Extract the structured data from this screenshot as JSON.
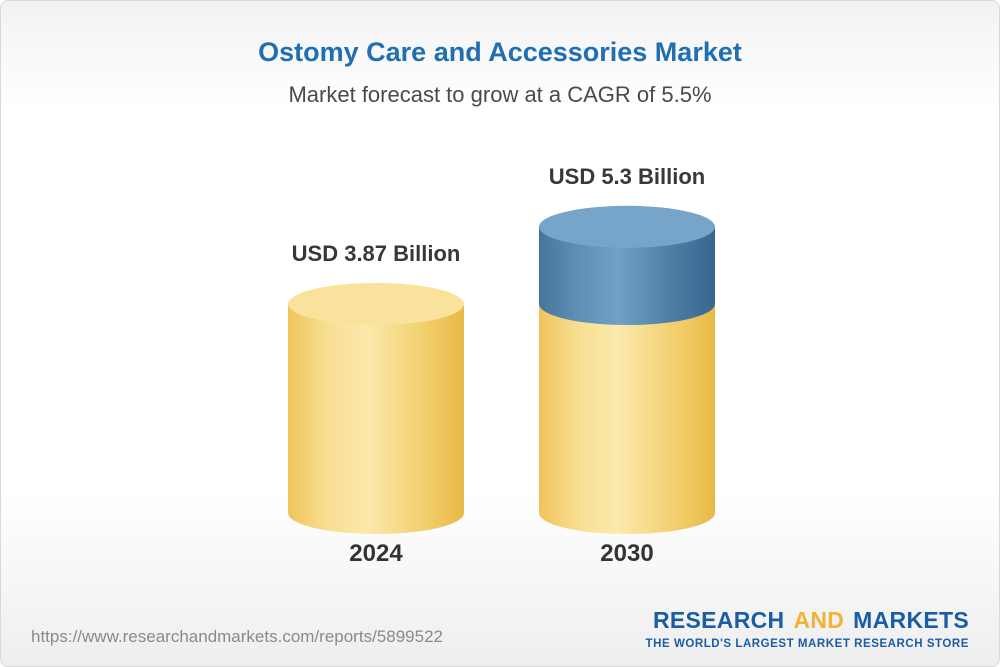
{
  "chart_data": {
    "type": "bar",
    "variant": "3d-cylinder",
    "title": "Ostomy Care and Accessories Market",
    "subtitle": "Market forecast to grow at a CAGR of 5.5%",
    "unit": "USD Billion",
    "categories": [
      "2024",
      "2030"
    ],
    "values": [
      3.87,
      5.3
    ],
    "value_labels": [
      "USD 3.87 Billion",
      "USD 5.3 Billion"
    ],
    "ylim": [
      0,
      5.5
    ],
    "grid": false,
    "legend": "none",
    "series_note": "2030 bar shows yellow base segment equal to 2024 value (3.87) with blue growth segment on top reaching 5.3",
    "colors": {
      "yellow_body": [
        "#EFC45B",
        "#F8DE92",
        "#FBE9AC",
        "#F2CE6C",
        "#E7B946"
      ],
      "yellow_cap": "#F9E29C",
      "blue_body": [
        "#47749B",
        "#5E90B6",
        "#6FA0C5",
        "#4B7BA3",
        "#3A6690"
      ],
      "blue_cap": "#77A5C9"
    }
  },
  "header": {
    "title_color": "#1F6FB2",
    "subtitle_color": "#4A4A4A"
  },
  "footer": {
    "source_url": "https://www.researchandmarkets.com/reports/5899522",
    "logo": {
      "word1": "RESEARCH",
      "word2": "AND",
      "word3": "MARKETS",
      "tagline": "THE WORLD'S LARGEST MARKET RESEARCH STORE",
      "blue": "#1A5DA6",
      "yellow": "#F2B234"
    }
  }
}
